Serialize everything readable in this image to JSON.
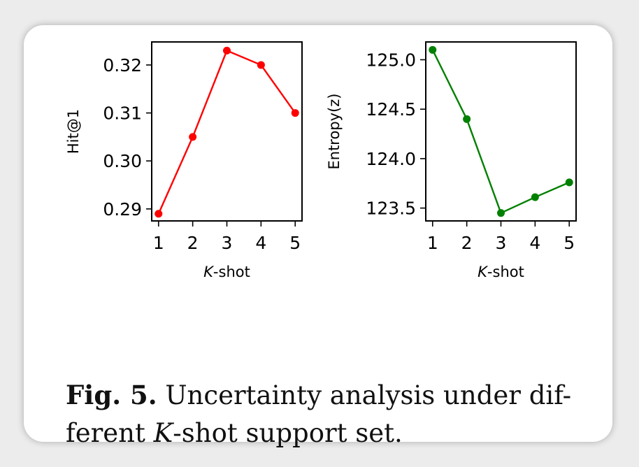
{
  "chart_data": [
    {
      "type": "line",
      "x": [
        1,
        2,
        3,
        4,
        5
      ],
      "series": [
        {
          "values": [
            0.289,
            0.305,
            0.323,
            0.32,
            0.31
          ],
          "color": "#ff0000"
        }
      ],
      "xlabel_italic": "K",
      "xlabel_rest": "-shot",
      "ylabel": "Hit@1",
      "xlim": [
        0.8,
        5.2
      ],
      "ylim": [
        0.2875,
        0.3248
      ],
      "xticks": [
        1,
        2,
        3,
        4,
        5
      ],
      "yticks": [
        0.29,
        0.3,
        0.31,
        0.32
      ],
      "ytick_labels": [
        "0.29",
        "0.30",
        "0.31",
        "0.32"
      ],
      "grid": false
    },
    {
      "type": "line",
      "x": [
        1,
        2,
        3,
        4,
        5
      ],
      "series": [
        {
          "values": [
            125.1,
            124.4,
            123.45,
            123.61,
            123.76
          ],
          "color": "#008000"
        }
      ],
      "xlabel_italic": "K",
      "xlabel_rest": "-shot",
      "ylabel": "Entropy(z)",
      "xlim": [
        0.8,
        5.2
      ],
      "ylim": [
        123.37,
        125.18
      ],
      "xticks": [
        1,
        2,
        3,
        4,
        5
      ],
      "yticks": [
        123.5,
        124.0,
        124.5,
        125.0
      ],
      "ytick_labels": [
        "123.5",
        "124.0",
        "124.5",
        "125.0"
      ],
      "grid": false
    }
  ],
  "caption": {
    "label": "Fig. 5.",
    "text_1": " Uncertainty analysis under dif-",
    "text_2": "ferent ",
    "text_italic": "K",
    "text_3": "-shot support set."
  }
}
